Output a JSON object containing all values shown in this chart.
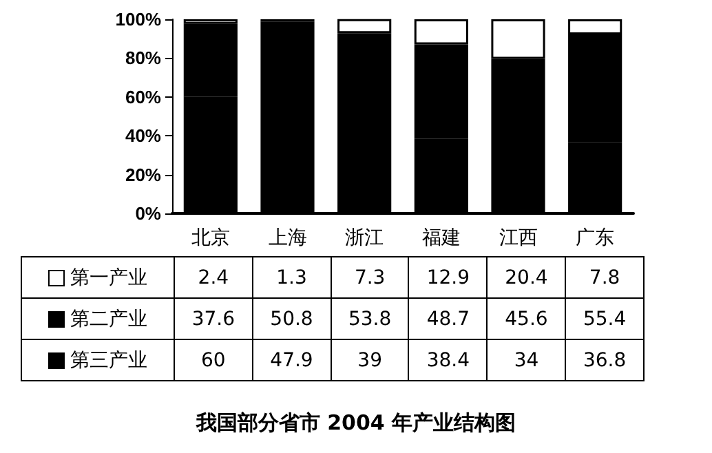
{
  "chart_data": {
    "type": "bar",
    "title": "我国部分省市 2004 年产业结构图",
    "categories": [
      "北京",
      "上海",
      "浙江",
      "福建",
      "江西",
      "广东"
    ],
    "stacked": true,
    "series": [
      {
        "name": "第三产业",
        "color": "#000000",
        "values": [
          60,
          47.9,
          39,
          38.4,
          34,
          36.8
        ]
      },
      {
        "name": "第二产业",
        "color": "#000000",
        "values": [
          37.6,
          50.8,
          53.8,
          48.7,
          45.6,
          55.4
        ]
      },
      {
        "name": "第一产业",
        "color": "#ffffff",
        "values": [
          2.4,
          1.3,
          7.3,
          12.9,
          20.4,
          7.8
        ]
      }
    ],
    "ylim": [
      0,
      100
    ],
    "yticks": [
      {
        "value": 0,
        "label": "0%"
      },
      {
        "value": 20,
        "label": "20%"
      },
      {
        "value": 40,
        "label": "40%"
      },
      {
        "value": 60,
        "label": "60%"
      },
      {
        "value": 80,
        "label": "80%"
      },
      {
        "value": 100,
        "label": "100%"
      }
    ],
    "grid": false,
    "legend": "bottom left",
    "data_labels": true
  }
}
